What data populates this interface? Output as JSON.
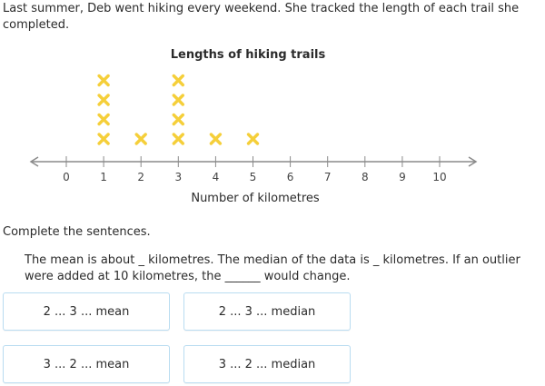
{
  "question": {
    "intro": "Last summer, Deb went hiking every weekend. She tracked the length of each trail she completed.",
    "prompt": "Complete the sentences.",
    "sentence": "The mean is about _ kilometres. The median of the data is _ kilometres. If an outlier were added at 10 kilometres, the ______ would change."
  },
  "choices": [
    {
      "label": "2 ... 3 ... mean"
    },
    {
      "label": "2 ... 3 ... median"
    },
    {
      "label": "3 ... 2 ... mean"
    },
    {
      "label": "3 ... 2 ... median"
    }
  ],
  "colors": {
    "marker": "#f5cf3a",
    "axis": "#8a8a8a",
    "choice_border": "#b9dcf1"
  },
  "chart_data": {
    "type": "scatter",
    "title": "Lengths of hiking trails",
    "xlabel": "Number of kilometres",
    "ylabel": "",
    "xlim": [
      0,
      10
    ],
    "ticks": [
      0,
      1,
      2,
      3,
      4,
      5,
      6,
      7,
      8,
      9,
      10
    ],
    "marker": "x",
    "counts": [
      {
        "x": 1,
        "count": 4
      },
      {
        "x": 2,
        "count": 1
      },
      {
        "x": 3,
        "count": 4
      },
      {
        "x": 4,
        "count": 1
      },
      {
        "x": 5,
        "count": 1
      }
    ]
  }
}
